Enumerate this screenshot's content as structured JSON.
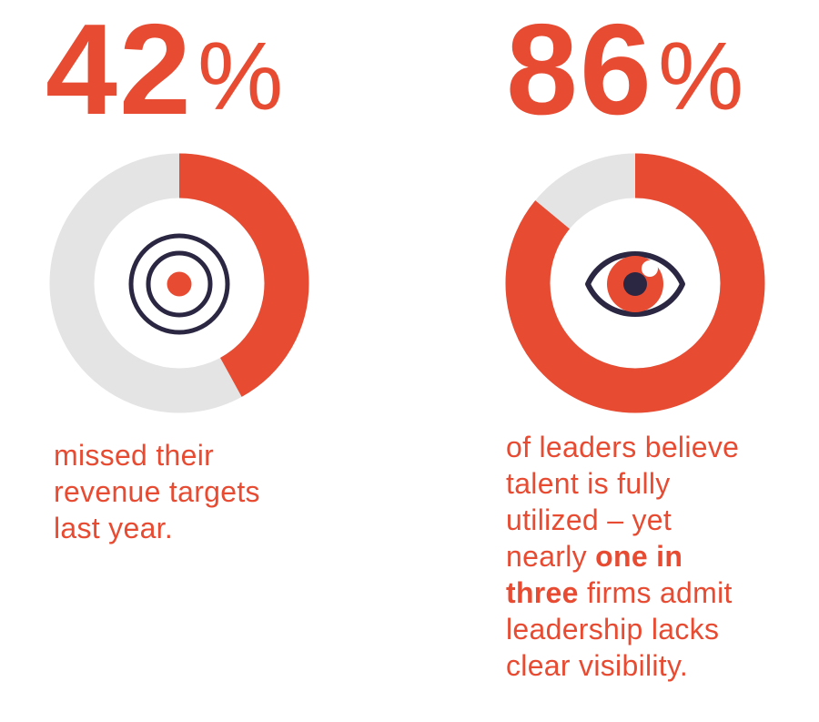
{
  "page": {
    "background_color": "#FFFFFF"
  },
  "colors": {
    "accent_orange": "#E74B32",
    "track_gray": "#E4E4E4",
    "icon_navy": "#2B2642"
  },
  "stats": [
    {
      "id": "missed-revenue-targets",
      "value": "42",
      "percent_sign": "%",
      "percent": 42,
      "icon": "target-icon",
      "caption_lines": [
        [
          {
            "text": "missed their",
            "bold": false
          }
        ],
        [
          {
            "text": "revenue targets",
            "bold": false
          }
        ],
        [
          {
            "text": "last year.",
            "bold": false
          }
        ]
      ]
    },
    {
      "id": "talent-visibility",
      "value": "86",
      "percent_sign": "%",
      "percent": 86,
      "icon": "eye-icon",
      "caption_lines": [
        [
          {
            "text": "of leaders believe",
            "bold": false
          }
        ],
        [
          {
            "text": "talent is fully",
            "bold": false
          }
        ],
        [
          {
            "text": "utilized – yet",
            "bold": false
          }
        ],
        [
          {
            "text": "nearly ",
            "bold": false
          },
          {
            "text": "one in",
            "bold": true
          }
        ],
        [
          {
            "text": "three",
            "bold": true
          },
          {
            "text": " firms admit",
            "bold": false
          }
        ],
        [
          {
            "text": "leadership lacks",
            "bold": false
          }
        ],
        [
          {
            "text": "clear visibility.",
            "bold": false
          }
        ]
      ]
    }
  ],
  "chart_data": [
    {
      "type": "pie",
      "subtype": "donut",
      "stat_label": "42%",
      "caption": "missed their revenue targets last year.",
      "categories": [
        "missed revenue targets",
        "remainder"
      ],
      "values": [
        42,
        58
      ],
      "colors": [
        "#E74B32",
        "#E4E4E4"
      ],
      "start_angle": "12 o'clock",
      "direction": "clockwise",
      "center_icon": "target-icon",
      "legend": "none",
      "data_labels": "none"
    },
    {
      "type": "pie",
      "subtype": "donut",
      "stat_label": "86%",
      "caption": "of leaders believe talent is fully utilized – yet nearly one in three firms admit leadership lacks clear visibility.",
      "categories": [
        "believe talent is fully utilized",
        "remainder"
      ],
      "values": [
        86,
        14
      ],
      "colors": [
        "#E74B32",
        "#E4E4E4"
      ],
      "start_angle": "12 o'clock",
      "direction": "clockwise",
      "center_icon": "eye-icon",
      "legend": "none",
      "data_labels": "none"
    }
  ]
}
